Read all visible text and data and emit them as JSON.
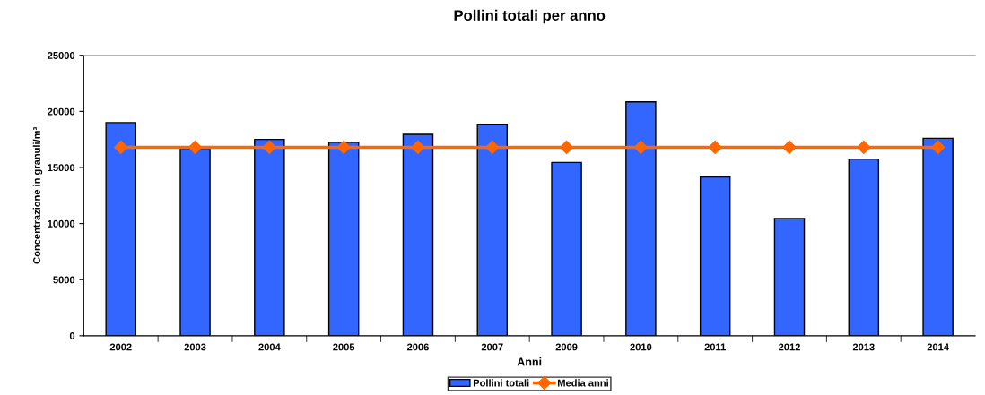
{
  "chart_data": {
    "type": "bar",
    "title": "Pollini totali per anno",
    "xlabel": "Anni",
    "ylabel": "Concentrazione in granuli/m³",
    "categories": [
      "2002",
      "2003",
      "2004",
      "2005",
      "2006",
      "2007",
      "2009",
      "2010",
      "2011",
      "2012",
      "2013",
      "2014"
    ],
    "series": [
      {
        "name": "Pollini totali",
        "color": "#3366ff",
        "values": [
          19000,
          16700,
          17500,
          17250,
          17950,
          18850,
          15450,
          20850,
          14150,
          10450,
          15750,
          17600
        ]
      },
      {
        "name": "Media anni",
        "type": "line",
        "color": "#ff6600",
        "marker": "diamond",
        "values": [
          16800,
          16800,
          16800,
          16800,
          16800,
          16800,
          16800,
          16800,
          16800,
          16800,
          16800,
          16800
        ]
      }
    ],
    "ylim": [
      0,
      25000
    ],
    "yticks": [
      0,
      5000,
      10000,
      15000,
      20000,
      25000
    ],
    "grid": false,
    "legend": "bottom"
  }
}
